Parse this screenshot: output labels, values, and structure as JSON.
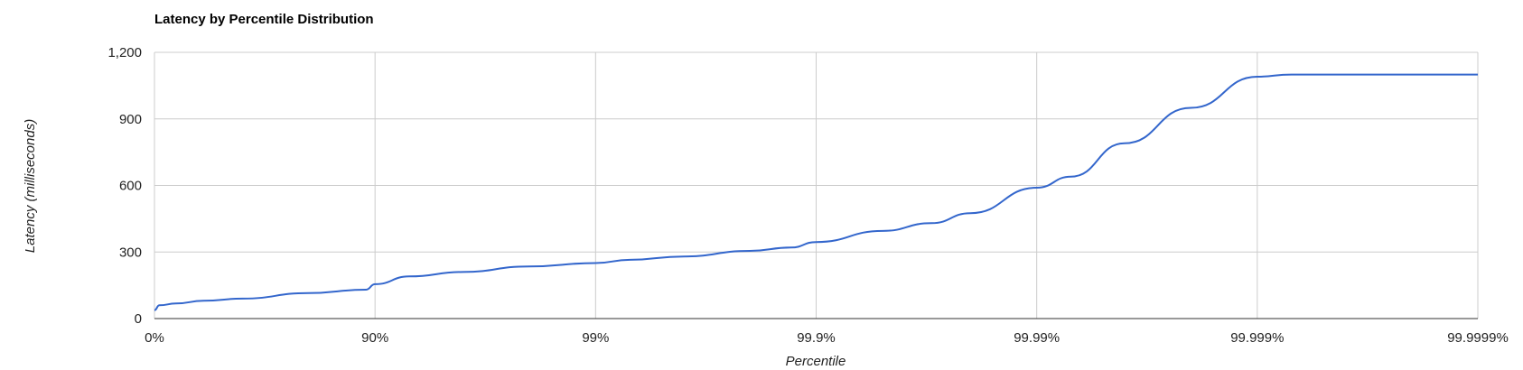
{
  "chart_data": {
    "type": "line",
    "title": "Latency by Percentile Distribution",
    "xlabel": "Percentile",
    "ylabel": "Latency (milliseconds)",
    "x_scale": "percentile (log of 1/(1-p))",
    "x_ticks": [
      "0%",
      "90%",
      "99%",
      "99.9%",
      "99.99%",
      "99.999%",
      "99.9999%"
    ],
    "y_ticks": [
      "0",
      "300",
      "600",
      "900",
      "1,200"
    ],
    "ylim": [
      0,
      1200
    ],
    "grid": true,
    "legend": "none",
    "colors": {
      "line": "#3366cc",
      "grid": "#cccccc",
      "baseline": "#333333"
    },
    "series": [
      {
        "x": [
          "0%",
          "5%",
          "20%",
          "40%",
          "60%",
          "80%",
          "89%",
          "90%",
          "93%",
          "96%",
          "98%",
          "99%",
          "99.3%",
          "99.6%",
          "99.8%",
          "99.87%",
          "99.9%",
          "99.95%",
          "99.97%",
          "99.98%",
          "99.99%",
          "99.993%",
          "99.996%",
          "99.998%",
          "99.999%",
          "99.9993%",
          "99.9995%",
          "99.9999%"
        ],
        "y": [
          38,
          60,
          68,
          80,
          90,
          115,
          130,
          155,
          190,
          210,
          235,
          250,
          265,
          280,
          305,
          320,
          345,
          395,
          430,
          475,
          590,
          640,
          790,
          950,
          1090,
          1100,
          1100,
          1100
        ]
      }
    ]
  }
}
